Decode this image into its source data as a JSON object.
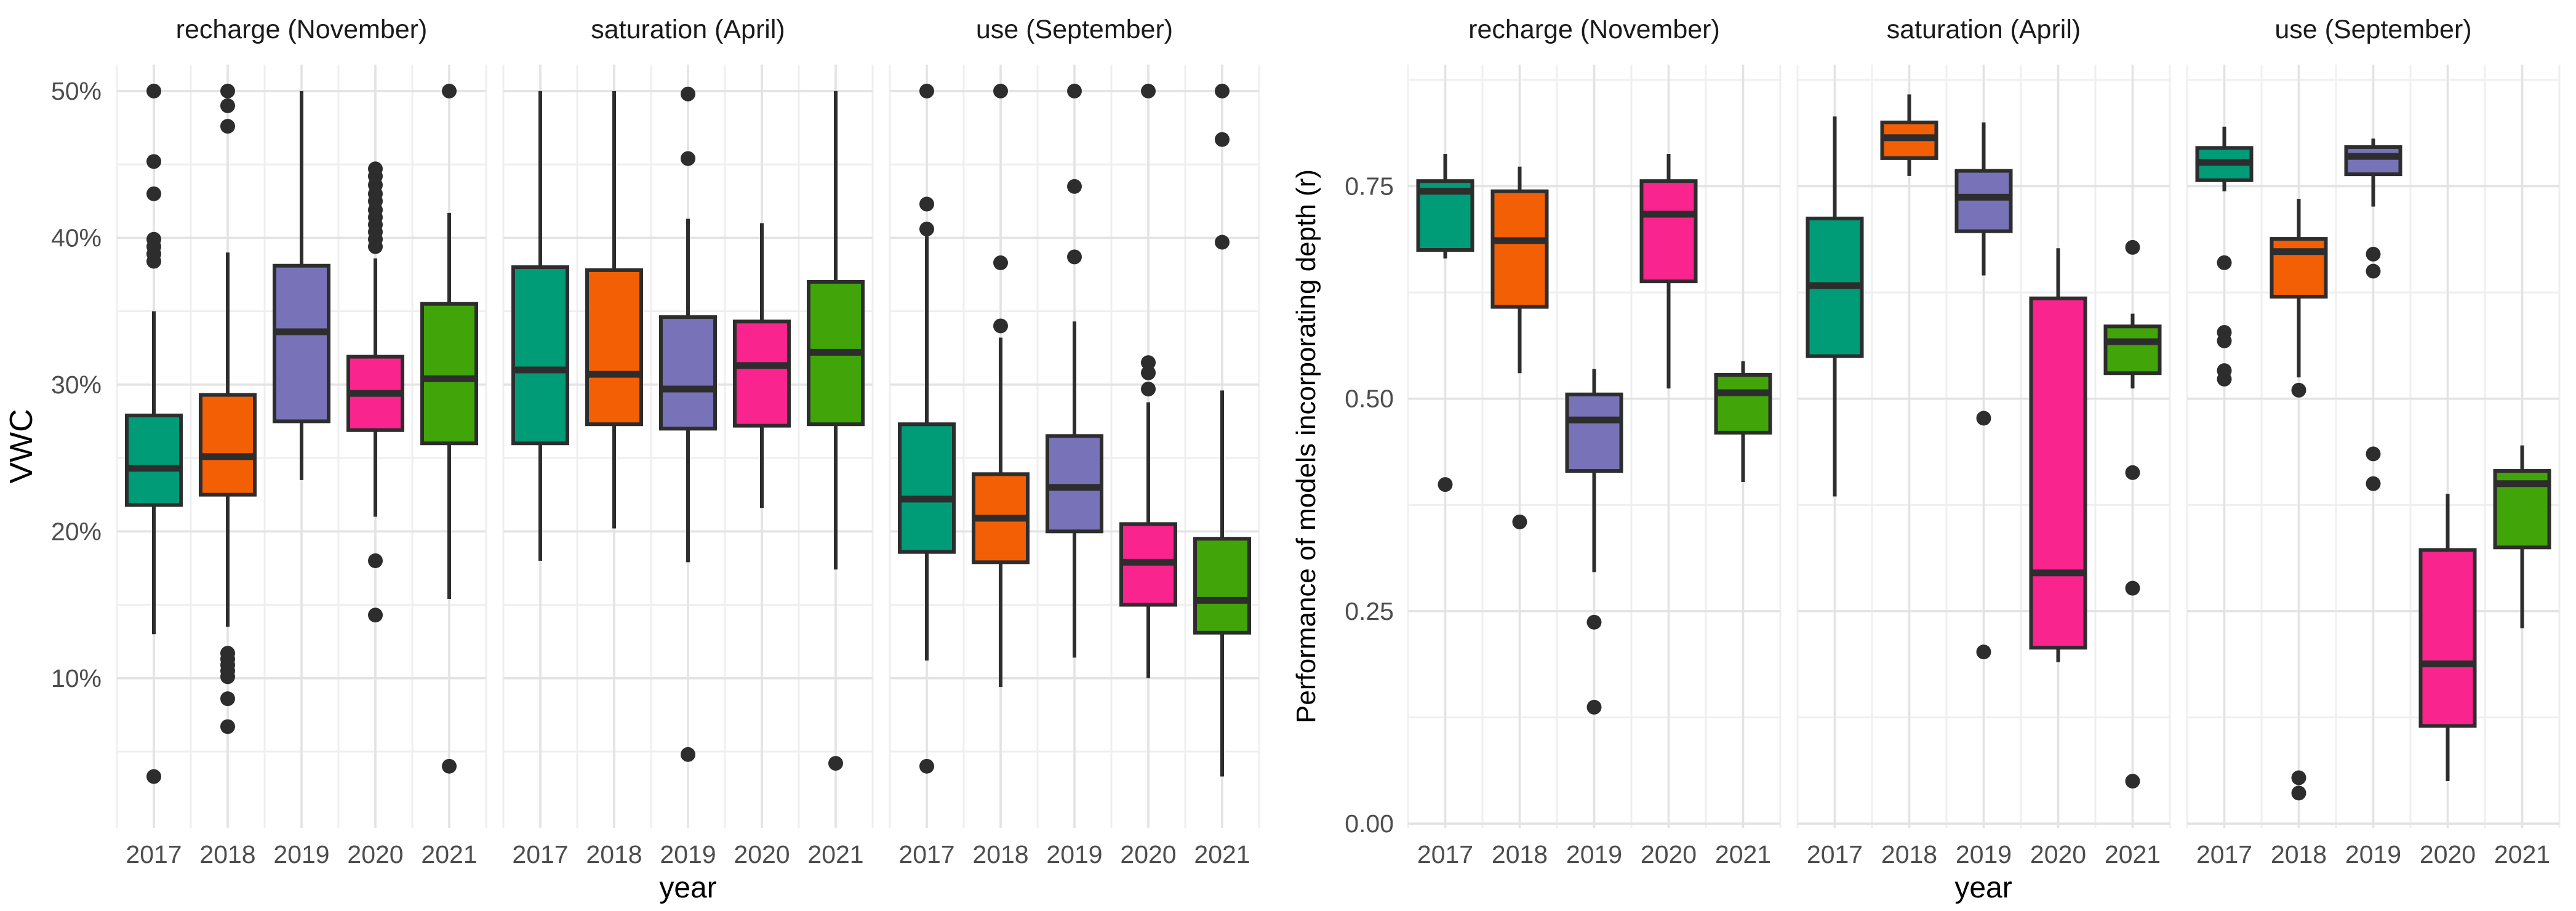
{
  "page": {
    "background": "#FFFFFF"
  },
  "palette": {
    "2017": "#009B77",
    "2018": "#F25F05",
    "2019": "#7873B8",
    "2020": "#F9248D",
    "2021": "#41A408",
    "box_stroke": "#2D2D2D",
    "outlier": "#2D2D2D",
    "grid_major": "#E3E3E3",
    "grid_minor": "#EFEFEF",
    "tick_label": "#4D4D4D",
    "title_text": "#000000",
    "strip_text": "#1A1A1A"
  },
  "chart_data": [
    {
      "type": "boxplot",
      "title": "",
      "xlabel": "year",
      "ylabel": "VWC",
      "legend": "none",
      "grid": "major+minor",
      "ylim": [
        -0.2,
        51.8
      ],
      "yticks": [
        {
          "value": 10,
          "label": "10%"
        },
        {
          "value": 20,
          "label": "20%"
        },
        {
          "value": 30,
          "label": "30%"
        },
        {
          "value": 40,
          "label": "40%"
        },
        {
          "value": 50,
          "label": "50%"
        }
      ],
      "yminor": [
        5,
        15,
        25,
        35,
        45
      ],
      "categories": [
        "2017",
        "2018",
        "2019",
        "2020",
        "2021"
      ],
      "facets": [
        {
          "label": "recharge (November)",
          "boxes": [
            {
              "year": "2017",
              "whisker_low": 13.0,
              "q1": 21.8,
              "median": 24.3,
              "q3": 27.9,
              "whisker_high": 35.0,
              "outliers": [
                3.3,
                38.4,
                38.9,
                39.4,
                39.9,
                43.0,
                45.2,
                50.0
              ]
            },
            {
              "year": "2018",
              "whisker_low": 13.5,
              "q1": 22.5,
              "median": 25.1,
              "q3": 29.3,
              "whisker_high": 39.0,
              "outliers": [
                6.7,
                8.6,
                10.1,
                10.5,
                10.9,
                11.3,
                11.7,
                47.6,
                49.0,
                50.0
              ]
            },
            {
              "year": "2019",
              "whisker_low": 23.5,
              "q1": 27.5,
              "median": 33.6,
              "q3": 38.1,
              "whisker_high": 50.0,
              "outliers": []
            },
            {
              "year": "2020",
              "whisker_low": 21.0,
              "q1": 26.9,
              "median": 29.4,
              "q3": 31.9,
              "whisker_high": 38.6,
              "outliers": [
                14.3,
                18.0,
                39.4,
                39.9,
                40.4,
                40.9,
                41.4,
                41.9,
                42.5,
                43.0,
                43.6,
                44.2,
                44.7
              ]
            },
            {
              "year": "2021",
              "whisker_low": 15.4,
              "q1": 26.0,
              "median": 30.4,
              "q3": 35.5,
              "whisker_high": 41.7,
              "outliers": [
                4.0,
                50.0
              ]
            }
          ]
        },
        {
          "label": "saturation (April)",
          "boxes": [
            {
              "year": "2017",
              "whisker_low": 18.0,
              "q1": 26.0,
              "median": 31.0,
              "q3": 38.0,
              "whisker_high": 50.0,
              "outliers": []
            },
            {
              "year": "2018",
              "whisker_low": 20.2,
              "q1": 27.3,
              "median": 30.7,
              "q3": 37.8,
              "whisker_high": 50.0,
              "outliers": []
            },
            {
              "year": "2019",
              "whisker_low": 17.9,
              "q1": 27.0,
              "median": 29.7,
              "q3": 34.6,
              "whisker_high": 41.3,
              "outliers": [
                4.8,
                45.4,
                49.8
              ]
            },
            {
              "year": "2020",
              "whisker_low": 21.6,
              "q1": 27.2,
              "median": 31.3,
              "q3": 34.3,
              "whisker_high": 41.0,
              "outliers": []
            },
            {
              "year": "2021",
              "whisker_low": 17.4,
              "q1": 27.3,
              "median": 32.2,
              "q3": 37.0,
              "whisker_high": 50.0,
              "outliers": [
                4.2
              ]
            }
          ]
        },
        {
          "label": "use (September)",
          "boxes": [
            {
              "year": "2017",
              "whisker_low": 11.2,
              "q1": 18.6,
              "median": 22.2,
              "q3": 27.3,
              "whisker_high": 40.1,
              "outliers": [
                4.0,
                40.6,
                42.3,
                50.0
              ]
            },
            {
              "year": "2018",
              "whisker_low": 9.4,
              "q1": 17.9,
              "median": 20.9,
              "q3": 23.9,
              "whisker_high": 33.2,
              "outliers": [
                34.0,
                38.3,
                50.0
              ]
            },
            {
              "year": "2019",
              "whisker_low": 11.4,
              "q1": 20.0,
              "median": 23.0,
              "q3": 26.5,
              "whisker_high": 34.3,
              "outliers": [
                38.7,
                43.5,
                50.0
              ]
            },
            {
              "year": "2020",
              "whisker_low": 10.0,
              "q1": 15.0,
              "median": 17.9,
              "q3": 20.5,
              "whisker_high": 28.8,
              "outliers": [
                29.7,
                30.8,
                31.5,
                50.0
              ]
            },
            {
              "year": "2021",
              "whisker_low": 3.3,
              "q1": 13.1,
              "median": 15.3,
              "q3": 19.5,
              "whisker_high": 29.6,
              "outliers": [
                39.7,
                46.7,
                50.0
              ]
            }
          ]
        }
      ]
    },
    {
      "type": "boxplot",
      "title": "",
      "xlabel": "year",
      "ylabel": "Performance of models incorporating depth (r)",
      "legend": "none",
      "grid": "major+minor",
      "ylim": [
        -0.005,
        0.893
      ],
      "yticks": [
        {
          "value": 0.0,
          "label": "0.00"
        },
        {
          "value": 0.25,
          "label": "0.25"
        },
        {
          "value": 0.5,
          "label": "0.50"
        },
        {
          "value": 0.75,
          "label": "0.75"
        }
      ],
      "yminor": [
        0.125,
        0.375,
        0.625,
        0.875
      ],
      "categories": [
        "2017",
        "2018",
        "2019",
        "2020",
        "2021"
      ],
      "facets": [
        {
          "label": "recharge (November)",
          "boxes": [
            {
              "year": "2017",
              "whisker_low": 0.665,
              "q1": 0.675,
              "median": 0.744,
              "q3": 0.756,
              "whisker_high": 0.788,
              "outliers": [
                0.399
              ]
            },
            {
              "year": "2018",
              "whisker_low": 0.53,
              "q1": 0.608,
              "median": 0.686,
              "q3": 0.744,
              "whisker_high": 0.773,
              "outliers": [
                0.355
              ]
            },
            {
              "year": "2019",
              "whisker_low": 0.296,
              "q1": 0.415,
              "median": 0.475,
              "q3": 0.505,
              "whisker_high": 0.535,
              "outliers": [
                0.237,
                0.137
              ]
            },
            {
              "year": "2020",
              "whisker_low": 0.512,
              "q1": 0.638,
              "median": 0.717,
              "q3": 0.756,
              "whisker_high": 0.788,
              "outliers": []
            },
            {
              "year": "2021",
              "whisker_low": 0.402,
              "q1": 0.46,
              "median": 0.507,
              "q3": 0.528,
              "whisker_high": 0.544,
              "outliers": []
            }
          ]
        },
        {
          "label": "saturation (April)",
          "boxes": [
            {
              "year": "2017",
              "whisker_low": 0.385,
              "q1": 0.55,
              "median": 0.633,
              "q3": 0.712,
              "whisker_high": 0.832,
              "outliers": []
            },
            {
              "year": "2018",
              "whisker_low": 0.762,
              "q1": 0.783,
              "median": 0.807,
              "q3": 0.825,
              "whisker_high": 0.858,
              "outliers": []
            },
            {
              "year": "2019",
              "whisker_low": 0.645,
              "q1": 0.697,
              "median": 0.737,
              "q3": 0.768,
              "whisker_high": 0.825,
              "outliers": [
                0.477,
                0.202
              ]
            },
            {
              "year": "2020",
              "whisker_low": 0.19,
              "q1": 0.207,
              "median": 0.295,
              "q3": 0.618,
              "whisker_high": 0.677,
              "outliers": []
            },
            {
              "year": "2021",
              "whisker_low": 0.512,
              "q1": 0.53,
              "median": 0.567,
              "q3": 0.585,
              "whisker_high": 0.6,
              "outliers": [
                0.678,
                0.413,
                0.277,
                0.05
              ]
            }
          ]
        },
        {
          "label": "use (September)",
          "boxes": [
            {
              "year": "2017",
              "whisker_low": 0.744,
              "q1": 0.757,
              "median": 0.778,
              "q3": 0.795,
              "whisker_high": 0.82,
              "outliers": [
                0.66,
                0.578,
                0.568,
                0.533,
                0.523
              ]
            },
            {
              "year": "2018",
              "whisker_low": 0.525,
              "q1": 0.62,
              "median": 0.673,
              "q3": 0.688,
              "whisker_high": 0.735,
              "outliers": [
                0.51,
                0.054,
                0.036
              ]
            },
            {
              "year": "2019",
              "whisker_low": 0.726,
              "q1": 0.764,
              "median": 0.785,
              "q3": 0.796,
              "whisker_high": 0.806,
              "outliers": [
                0.67,
                0.65,
                0.435,
                0.4
              ]
            },
            {
              "year": "2020",
              "whisker_low": 0.05,
              "q1": 0.115,
              "median": 0.188,
              "q3": 0.322,
              "whisker_high": 0.388,
              "outliers": []
            },
            {
              "year": "2021",
              "whisker_low": 0.23,
              "q1": 0.325,
              "median": 0.4,
              "q3": 0.415,
              "whisker_high": 0.445,
              "outliers": []
            }
          ]
        }
      ]
    }
  ]
}
